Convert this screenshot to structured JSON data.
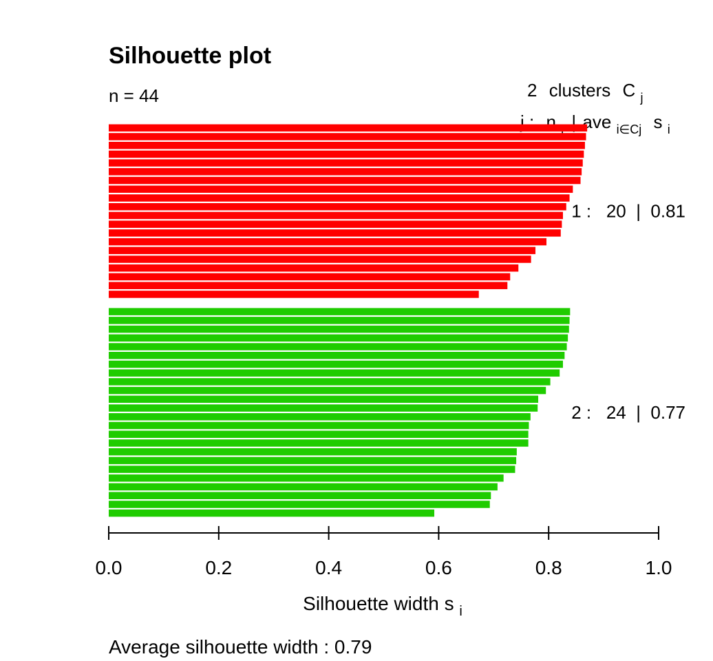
{
  "chart_data": {
    "type": "bar",
    "orientation": "horizontal",
    "title": "Silhouette plot",
    "n_label": "n = 44",
    "header": {
      "clusters_count": "2",
      "clusters_word": "clusters",
      "cluster_symbol": "C",
      "cluster_symbol_sub": "j",
      "legend_j": "j :",
      "legend_n": "n",
      "legend_n_sub": "j",
      "legend_sep": "|",
      "legend_ave": "ave",
      "legend_ave_sub": "i∈Cj",
      "legend_s": "s",
      "legend_s_sub": "i"
    },
    "xlabel": "Silhouette width s",
    "xlabel_sub": "i",
    "xlim": [
      0.0,
      1.0
    ],
    "xticks": [
      0.0,
      0.2,
      0.4,
      0.6,
      0.8,
      1.0
    ],
    "xtick_labels": [
      "0.0",
      "0.2",
      "0.4",
      "0.6",
      "0.8",
      "1.0"
    ],
    "footer": "Average silhouette width :  0.79",
    "series": [
      {
        "cluster": 1,
        "color": "#ff0000",
        "label": "1 :   20  |  0.81",
        "n": 20,
        "average": 0.81,
        "values": [
          0.87,
          0.868,
          0.866,
          0.864,
          0.862,
          0.86,
          0.858,
          0.844,
          0.838,
          0.832,
          0.826,
          0.824,
          0.822,
          0.796,
          0.776,
          0.768,
          0.745,
          0.73,
          0.725,
          0.673
        ]
      },
      {
        "cluster": 2,
        "color": "#1fcc00",
        "label": "2 :   24  |  0.77",
        "n": 24,
        "average": 0.77,
        "values": [
          0.839,
          0.838,
          0.837,
          0.835,
          0.833,
          0.829,
          0.826,
          0.82,
          0.803,
          0.795,
          0.781,
          0.78,
          0.767,
          0.764,
          0.763,
          0.763,
          0.742,
          0.741,
          0.739,
          0.718,
          0.707,
          0.695,
          0.693,
          0.592
        ]
      }
    ]
  }
}
